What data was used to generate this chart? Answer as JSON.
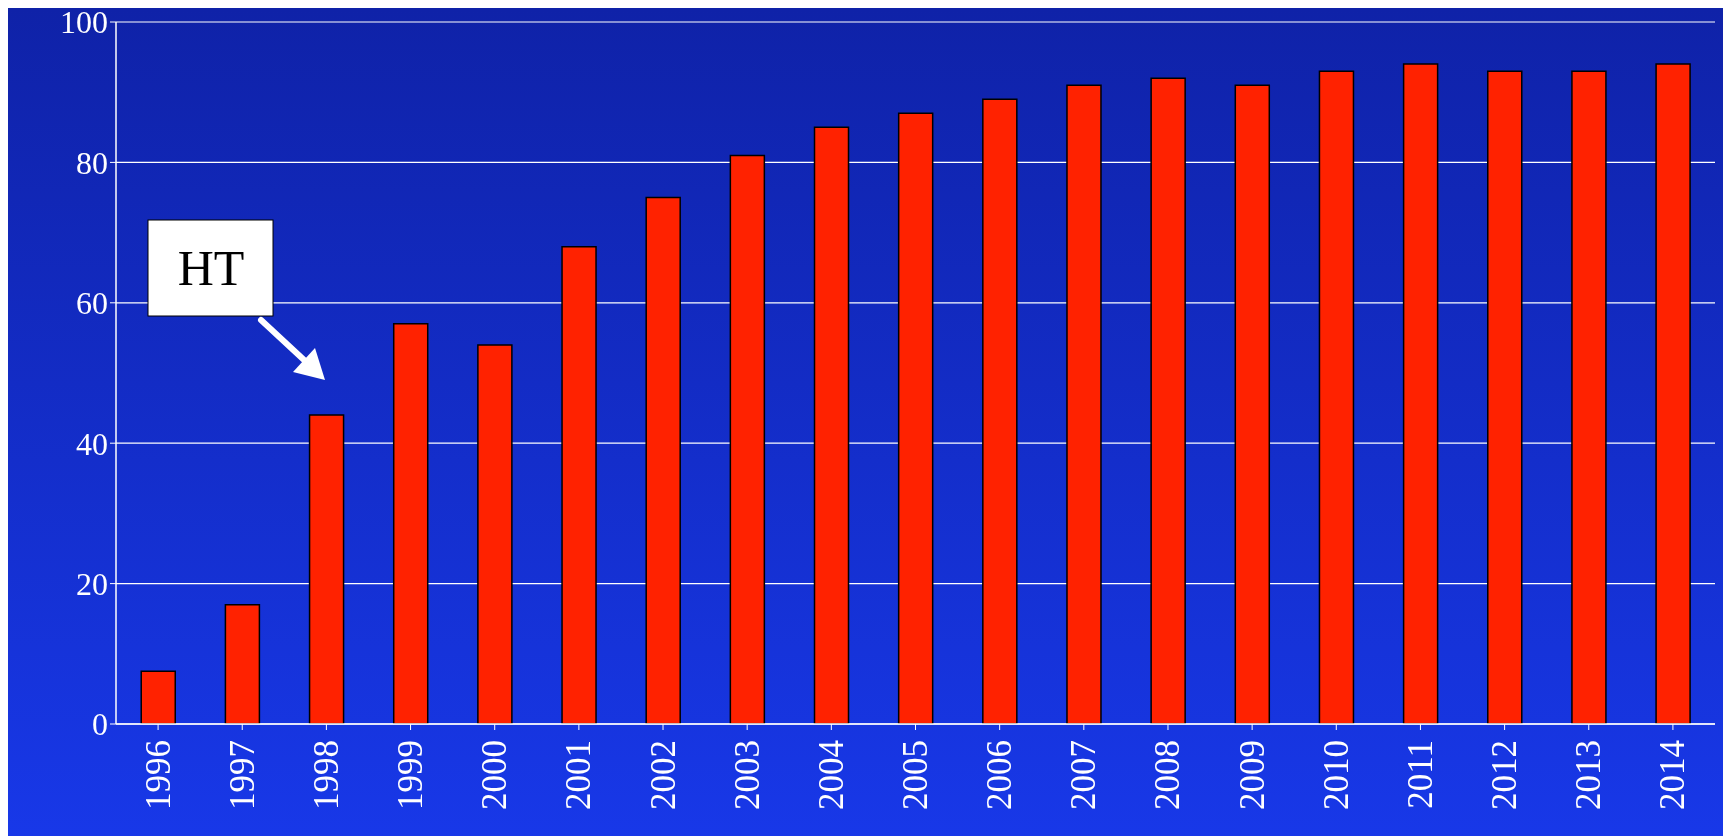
{
  "chart_data": {
    "type": "bar",
    "categories": [
      "1996",
      "1997",
      "1998",
      "1999",
      "2000",
      "2001",
      "2002",
      "2003",
      "2004",
      "2005",
      "2006",
      "2007",
      "2008",
      "2009",
      "2010",
      "2011",
      "2012",
      "2013",
      "2014"
    ],
    "values": [
      7.5,
      17,
      44,
      57,
      54,
      68,
      75,
      81,
      85,
      87,
      89,
      91,
      92,
      91,
      93,
      94,
      93,
      93,
      94
    ],
    "color": "#ff2200",
    "ylim": [
      0,
      100
    ],
    "yticks": [
      0,
      20,
      40,
      60,
      80,
      100
    ],
    "grid": "y",
    "annotations": [
      "HT"
    ]
  }
}
